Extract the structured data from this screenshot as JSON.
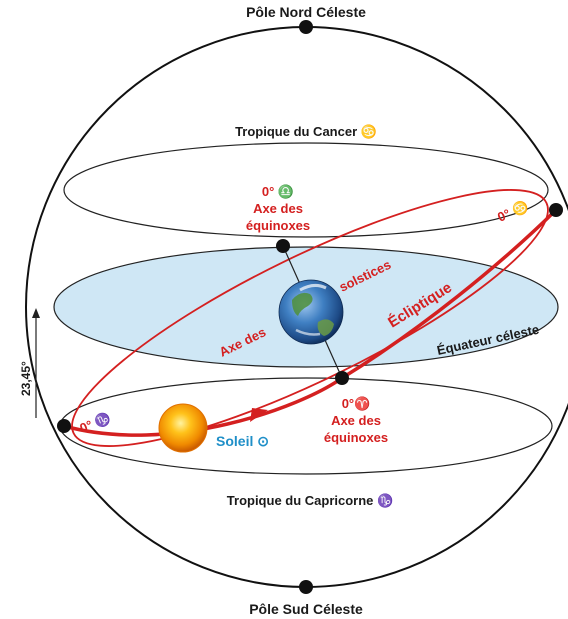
{
  "labels": {
    "north_pole": "Pôle Nord Céleste",
    "south_pole": "Pôle Sud Céleste",
    "tropic_cancer": "Tropique du Cancer ♋",
    "tropic_capricorn": "Tropique du Capricorne ♑",
    "equinox_top_degree": "0° ♎",
    "equinox_top_line1": "Axe des",
    "equinox_top_line2": "équinoxes",
    "solstice_right": "0° ♋",
    "solstice_left": "0° ♑",
    "solstice_axis_a": "Axe des",
    "solstice_axis_b": "solstices",
    "ecliptic": "Écliptique",
    "celestial_equator": "Équateur céleste",
    "equinox_bottom_degree": "0°♈",
    "equinox_bottom_line1": "Axe des",
    "equinox_bottom_line2": "équinoxes",
    "sun": "Soleil ⊙",
    "tilt": "23,45°"
  },
  "colors": {
    "ecliptic": "#d42020",
    "equator_plane": "#cfe7f5",
    "sphere_outline": "#111111",
    "sun_label": "#1f8fc8"
  },
  "icons": {
    "earth": "earth-icon",
    "sun": "sun-icon"
  }
}
